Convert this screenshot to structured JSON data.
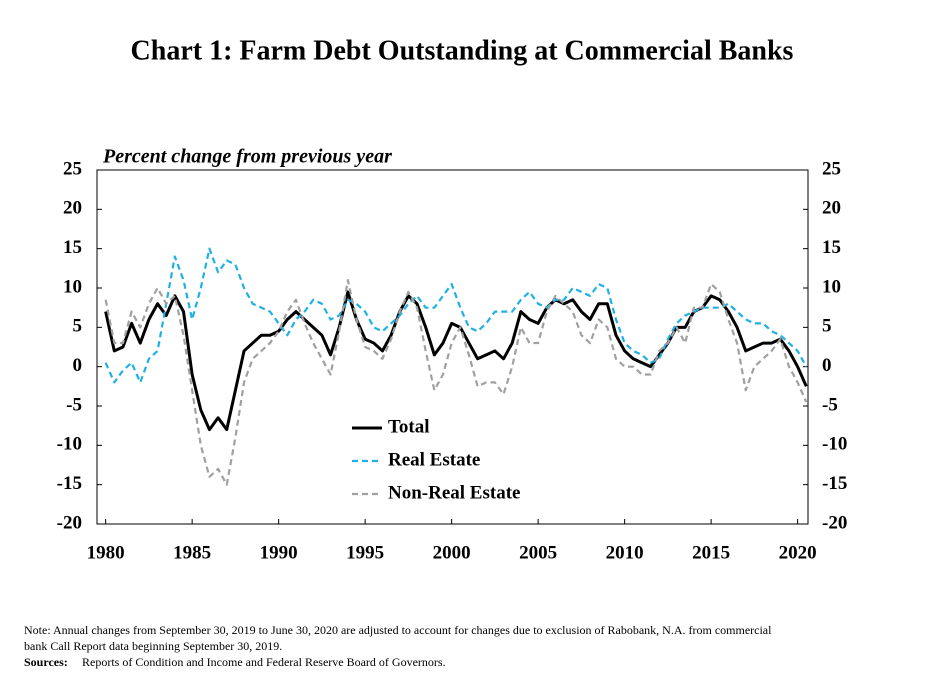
{
  "chart_data": {
    "type": "line",
    "title": "Chart 1: Farm Debt Outstanding at Commercial  Banks",
    "y_label": "Percent change from previous year",
    "x": [
      1980,
      1980.5,
      1981,
      1981.5,
      1982,
      1982.5,
      1983,
      1983.5,
      1984,
      1984.5,
      1985,
      1985.5,
      1986,
      1986.5,
      1987,
      1987.5,
      1988,
      1988.5,
      1989,
      1989.5,
      1990,
      1990.5,
      1991,
      1991.5,
      1992,
      1992.5,
      1993,
      1993.5,
      1994,
      1994.5,
      1995,
      1995.5,
      1996,
      1996.5,
      1997,
      1997.5,
      1998,
      1998.5,
      1999,
      1999.5,
      2000,
      2000.5,
      2001,
      2001.5,
      2002,
      2002.5,
      2003,
      2003.5,
      2004,
      2004.5,
      2005,
      2005.5,
      2006,
      2006.5,
      2007,
      2007.5,
      2008,
      2008.5,
      2009,
      2009.5,
      2010,
      2010.5,
      2011,
      2011.5,
      2012,
      2012.5,
      2013,
      2013.5,
      2014,
      2014.5,
      2015,
      2015.5,
      2016,
      2016.5,
      2017,
      2017.5,
      2018,
      2018.5,
      2019,
      2019.5,
      2020,
      2020.5
    ],
    "series": [
      {
        "name": "Total",
        "color": "#000000",
        "dashed": false,
        "values": [
          7,
          2,
          2.5,
          5.5,
          3,
          6,
          8,
          6.5,
          9,
          7,
          -1,
          -5.5,
          -8,
          -6.5,
          -8,
          -3,
          2,
          3,
          4,
          4,
          4.5,
          6,
          7,
          6,
          5,
          4,
          1.5,
          5,
          9.5,
          6,
          3.5,
          3,
          2,
          4,
          7,
          9,
          8,
          5,
          1.5,
          3,
          5.5,
          5,
          3,
          1,
          1.5,
          2,
          1,
          3,
          7,
          6,
          5.5,
          7.5,
          8.5,
          8,
          8.5,
          7,
          6,
          8,
          8,
          4,
          2,
          1,
          0.5,
          0,
          1.5,
          3,
          5,
          5,
          7,
          7.5,
          9,
          8.5,
          7,
          5,
          2,
          2.5,
          3,
          3,
          3.5,
          2,
          0,
          -2.5
        ]
      },
      {
        "name": "Real Estate",
        "color": "#1fb0e6",
        "dashed": true,
        "values": [
          0.5,
          -2,
          -0.5,
          0.5,
          -2,
          1,
          2,
          8,
          14,
          11,
          6,
          10,
          15,
          12,
          13.5,
          13,
          10,
          8,
          7.5,
          7,
          5.5,
          4,
          6,
          7,
          8.5,
          8,
          6,
          6.5,
          8.5,
          8,
          7,
          5,
          4.5,
          5.5,
          6.5,
          8,
          9,
          7.5,
          7.5,
          9,
          10.5,
          7.5,
          5,
          4.5,
          5.5,
          7,
          7,
          7,
          8.5,
          9.5,
          8,
          7.5,
          8.5,
          8.5,
          10,
          9.5,
          9,
          10.5,
          10,
          6,
          3,
          2,
          1.5,
          0.5,
          1,
          3.5,
          5.5,
          6.5,
          7,
          7.5,
          7.5,
          7.5,
          8,
          7,
          6,
          5.5,
          5.5,
          4.5,
          4,
          3,
          2,
          0
        ]
      },
      {
        "name": "Non-Real Estate",
        "color": "#a0a0a0",
        "dashed": true,
        "values": [
          8.5,
          3,
          3,
          7,
          5,
          8,
          10,
          8,
          9,
          4,
          -3,
          -10,
          -14,
          -13,
          -15,
          -9,
          -2,
          1,
          2,
          3,
          4.5,
          7,
          8.5,
          5.5,
          3,
          1,
          -1,
          4.5,
          11,
          6,
          2.5,
          2,
          1,
          3.5,
          7,
          9.5,
          7.5,
          2,
          -3,
          -1,
          3,
          5,
          1.5,
          -2.5,
          -2,
          -2,
          -3.5,
          0,
          5,
          3,
          3,
          7,
          9,
          8,
          7,
          4,
          3,
          6,
          5,
          1,
          0,
          0,
          -1,
          -1,
          2,
          3,
          5,
          3,
          7.5,
          7.5,
          10.5,
          9.5,
          6,
          3,
          -3,
          0,
          1,
          2,
          3.5,
          0,
          -2,
          -4.5
        ]
      }
    ],
    "xlim": [
      1979.5,
      2020.6
    ],
    "xticks": [
      1980,
      1985,
      1990,
      1995,
      2000,
      2005,
      2010,
      2015,
      2020
    ],
    "ylim": [
      -20,
      25
    ],
    "yticks": [
      -20,
      -15,
      -10,
      -5,
      0,
      5,
      10,
      15,
      20,
      25
    ],
    "y2lim": [
      -20,
      25
    ],
    "y2ticks": [
      -20,
      -15,
      -10,
      -5,
      0,
      5,
      10,
      15,
      20,
      25
    ],
    "grid": false,
    "legend_position": "lower center",
    "notes": [
      "Note: Annual changes from September 30, 2019 to June 30, 2020  are adjusted to account for changes due to exclusion of Rabobank, N.A. from commercial",
      "bank Call Report data beginning  September 30, 2019."
    ],
    "sources_label": "Sources:",
    "sources": "Reports of Condition and Income and Federal Reserve Board of Governors."
  }
}
